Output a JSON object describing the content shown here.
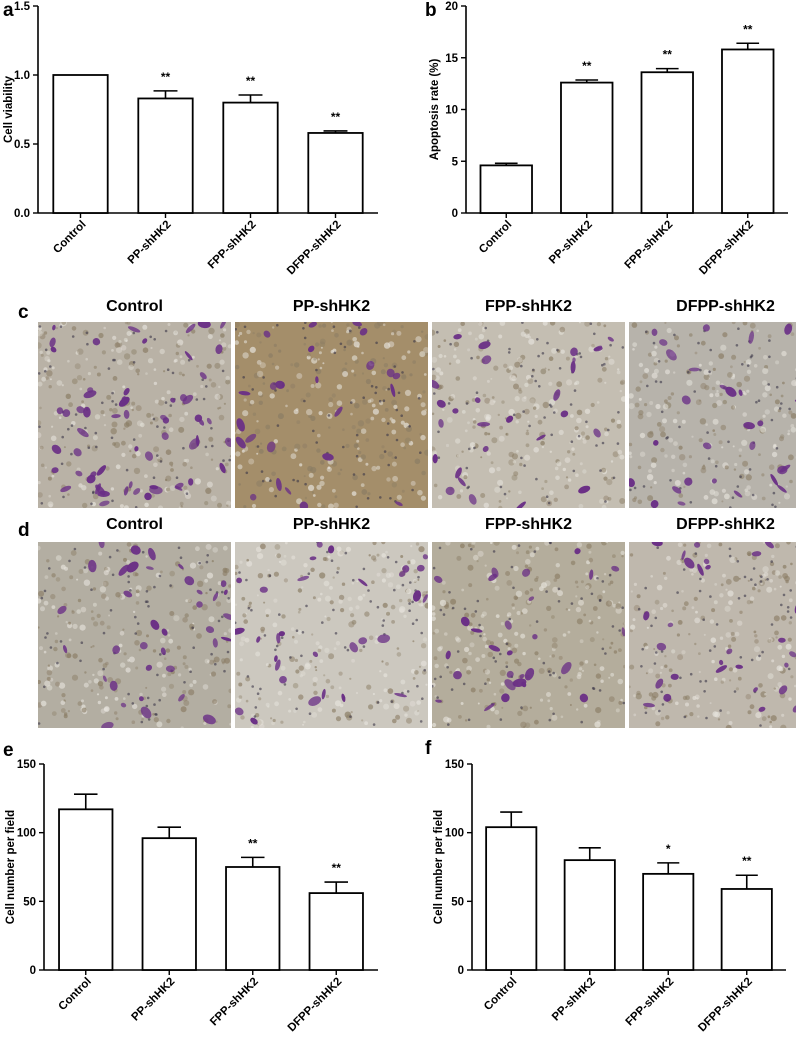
{
  "panels": {
    "a": "a",
    "b": "b",
    "c": "c",
    "d": "d",
    "e": "e",
    "f": "f"
  },
  "groups": [
    "Control",
    "PP-shHK2",
    "FPP-shHK2",
    "DFPP-shHK2"
  ],
  "micro_c": {
    "titles": [
      "Control",
      "PP-shHK2",
      "FPP-shHK2",
      "DFPP-shHK2"
    ],
    "backgrounds": [
      "#b9b2a6",
      "#a48e6a",
      "#c4beb2",
      "#b7b3ab"
    ],
    "cell_counts": [
      60,
      24,
      28,
      34
    ]
  },
  "micro_d": {
    "titles": [
      "Control",
      "PP-shHK2",
      "FPP-shHK2",
      "DFPP-shHK2"
    ],
    "backgrounds": [
      "#b3aea2",
      "#ccc8bf",
      "#b4ad9c",
      "#bfb8ad"
    ],
    "cell_counts": [
      36,
      30,
      28,
      30
    ]
  },
  "stain_color": "#6a2f86",
  "chart_data": [
    {
      "type": "bar",
      "panel": "a",
      "categories": [
        "Control",
        "PP-shHK2",
        "FPP-shHK2",
        "DFPP-shHK2"
      ],
      "values": [
        1.0,
        0.83,
        0.8,
        0.58
      ],
      "errors": [
        0,
        0.055,
        0.055,
        0.015
      ],
      "significance": [
        "",
        "**",
        "**",
        "**"
      ],
      "ylabel": "Cell viability",
      "ylim": [
        0,
        1.5
      ],
      "yticks": [
        0.0,
        0.5,
        1.0,
        1.5
      ],
      "ytick_labels": [
        "0.0",
        "0.5",
        "1.0",
        "1.5"
      ]
    },
    {
      "type": "bar",
      "panel": "b",
      "categories": [
        "Control",
        "PP-shHK2",
        "FPP-shHK2",
        "DFPP-shHK2"
      ],
      "values": [
        4.6,
        12.6,
        13.6,
        15.8
      ],
      "errors": [
        0.2,
        0.25,
        0.35,
        0.6
      ],
      "significance": [
        "",
        "**",
        "**",
        "**"
      ],
      "ylabel": "Apoptosis rate (%)",
      "ylim": [
        0,
        20
      ],
      "yticks": [
        0,
        5,
        10,
        15,
        20
      ],
      "ytick_labels": [
        "0",
        "5",
        "10",
        "15",
        "20"
      ]
    },
    {
      "type": "bar",
      "panel": "e",
      "categories": [
        "Control",
        "PP-shHK2",
        "FPP-shHK2",
        "DFPP-shHK2"
      ],
      "values": [
        117,
        96,
        75,
        56
      ],
      "errors": [
        11,
        8,
        7,
        8
      ],
      "significance": [
        "",
        "",
        "**",
        "**"
      ],
      "ylabel": "Cell number per field",
      "ylim": [
        0,
        150
      ],
      "yticks": [
        0,
        50,
        100,
        150
      ],
      "ytick_labels": [
        "0",
        "50",
        "100",
        "150"
      ]
    },
    {
      "type": "bar",
      "panel": "f",
      "categories": [
        "Control",
        "PP-shHK2",
        "FPP-shHK2",
        "DFPP-shHK2"
      ],
      "values": [
        104,
        80,
        70,
        59
      ],
      "errors": [
        11,
        9,
        8,
        10
      ],
      "significance": [
        "",
        "",
        "*",
        "**"
      ],
      "ylabel": "Cell number per field",
      "ylim": [
        0,
        150
      ],
      "yticks": [
        0,
        50,
        100,
        150
      ],
      "ytick_labels": [
        "0",
        "50",
        "100",
        "150"
      ]
    }
  ]
}
